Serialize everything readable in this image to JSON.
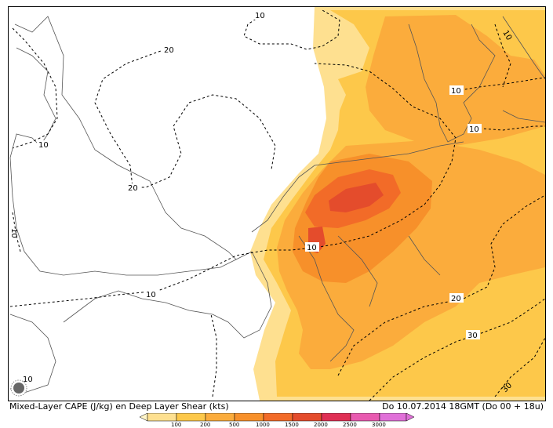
{
  "caption_left": "Mixed-Layer CAPE (J/kg) en Deep Layer Shear (kts)",
  "caption_right": "Do 10.07.2014  18GMT (Do 00 + 18u)",
  "colors": {
    "c100": "#fee090",
    "c200": "#fdc84a",
    "c500": "#fbac3c",
    "c1000": "#f7902a",
    "c1500": "#f26b28",
    "c2000": "#e44c2c",
    "c2500": "#df2f54",
    "c3000": "#e85ab0",
    "c3000plus": "#e070d8",
    "coast": "#555555",
    "contour": "#000000"
  },
  "colorbar": {
    "ticks": [
      "100",
      "200",
      "500",
      "1000",
      "1500",
      "2000",
      "2500",
      "3000"
    ]
  },
  "contour_labels": [
    "10",
    "20",
    "10",
    "20",
    "10",
    "10",
    "10",
    "10",
    "10",
    "20",
    "30",
    "30",
    "10",
    "10"
  ]
}
